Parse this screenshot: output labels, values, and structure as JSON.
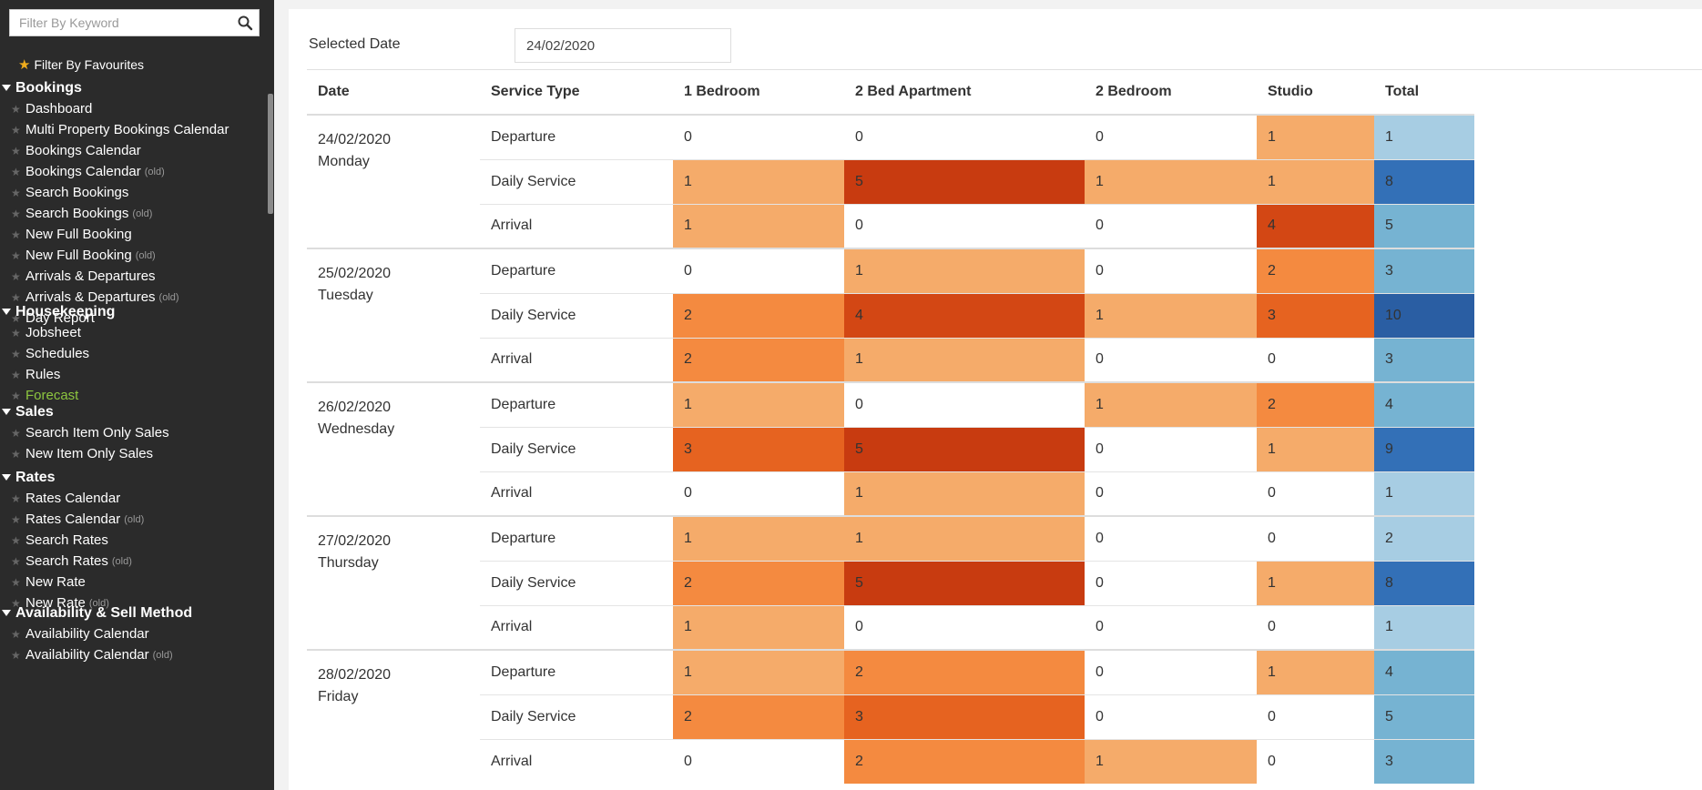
{
  "sidebar": {
    "search_placeholder": "Filter By Keyword",
    "favourites_label": "Filter By Favourites",
    "sections": [
      {
        "title": "Bookings",
        "items": [
          {
            "label": "Dashboard",
            "old": ""
          },
          {
            "label": "Multi Property Bookings Calendar",
            "old": ""
          },
          {
            "label": "Bookings Calendar",
            "old": ""
          },
          {
            "label": "Bookings Calendar",
            "old": "(old)"
          },
          {
            "label": "Search Bookings",
            "old": ""
          },
          {
            "label": "Search Bookings",
            "old": "(old)"
          },
          {
            "label": "New Full Booking",
            "old": ""
          },
          {
            "label": "New Full Booking",
            "old": "(old)"
          },
          {
            "label": "Arrivals & Departures",
            "old": ""
          },
          {
            "label": "Arrivals & Departures",
            "old": "(old)"
          },
          {
            "label": "Day Report",
            "old": ""
          }
        ]
      },
      {
        "title": "Housekeeping",
        "items": [
          {
            "label": "Jobsheet",
            "old": ""
          },
          {
            "label": "Schedules",
            "old": ""
          },
          {
            "label": "Rules",
            "old": ""
          },
          {
            "label": "Forecast",
            "old": "",
            "active": true
          }
        ]
      },
      {
        "title": "Sales",
        "items": [
          {
            "label": "Search Item Only Sales",
            "old": ""
          },
          {
            "label": "New Item Only Sales",
            "old": ""
          }
        ]
      },
      {
        "title": "Rates",
        "items": [
          {
            "label": "Rates Calendar",
            "old": ""
          },
          {
            "label": "Rates Calendar",
            "old": "(old)"
          },
          {
            "label": "Search Rates",
            "old": ""
          },
          {
            "label": "Search Rates",
            "old": "(old)"
          },
          {
            "label": "New Rate",
            "old": ""
          },
          {
            "label": "New Rate",
            "old": "(old)"
          }
        ]
      },
      {
        "title": "Availability & Sell Method",
        "items": [
          {
            "label": "Availability Calendar",
            "old": ""
          },
          {
            "label": "Availability Calendar",
            "old": "(old)"
          }
        ]
      }
    ]
  },
  "main": {
    "selected_date_label": "Selected Date",
    "selected_date_value": "24/02/2020",
    "columns": [
      "Date",
      "Service Type",
      "1 Bedroom",
      "2 Bed Apartment",
      "2 Bedroom",
      "Studio",
      "Total"
    ],
    "days": [
      {
        "date": "24/02/2020",
        "weekday": "Monday",
        "rows": [
          {
            "service": "Departure",
            "values": [
              0,
              0,
              0,
              1
            ],
            "total": 1
          },
          {
            "service": "Daily Service",
            "values": [
              1,
              5,
              1,
              1
            ],
            "total": 8
          },
          {
            "service": "Arrival",
            "values": [
              1,
              0,
              0,
              4
            ],
            "total": 5
          }
        ]
      },
      {
        "date": "25/02/2020",
        "weekday": "Tuesday",
        "rows": [
          {
            "service": "Departure",
            "values": [
              0,
              1,
              0,
              2
            ],
            "total": 3
          },
          {
            "service": "Daily Service",
            "values": [
              2,
              4,
              1,
              3
            ],
            "total": 10
          },
          {
            "service": "Arrival",
            "values": [
              2,
              1,
              0,
              0
            ],
            "total": 3
          }
        ]
      },
      {
        "date": "26/02/2020",
        "weekday": "Wednesday",
        "rows": [
          {
            "service": "Departure",
            "values": [
              1,
              0,
              1,
              2
            ],
            "total": 4
          },
          {
            "service": "Daily Service",
            "values": [
              3,
              5,
              0,
              1
            ],
            "total": 9
          },
          {
            "service": "Arrival",
            "values": [
              0,
              1,
              0,
              0
            ],
            "total": 1
          }
        ]
      },
      {
        "date": "27/02/2020",
        "weekday": "Thursday",
        "rows": [
          {
            "service": "Departure",
            "values": [
              1,
              1,
              0,
              0
            ],
            "total": 2
          },
          {
            "service": "Daily Service",
            "values": [
              2,
              5,
              0,
              1
            ],
            "total": 8
          },
          {
            "service": "Arrival",
            "values": [
              1,
              0,
              0,
              0
            ],
            "total": 1
          }
        ]
      },
      {
        "date": "28/02/2020",
        "weekday": "Friday",
        "rows": [
          {
            "service": "Departure",
            "values": [
              1,
              2,
              0,
              1
            ],
            "total": 4
          },
          {
            "service": "Daily Service",
            "values": [
              2,
              3,
              0,
              0
            ],
            "total": 5
          },
          {
            "service": "Arrival",
            "values": [
              0,
              2,
              1,
              0
            ],
            "total": 3
          }
        ]
      }
    ]
  },
  "colors": {
    "sidebar_bg": "#2b2b2b",
    "active_nav": "#8dc63f",
    "favourite_star": "#f0ad1c",
    "orange_scale": [
      "#ffffff",
      "#f5ab6a",
      "#f48a40",
      "#e66320",
      "#d34714",
      "#c83b10"
    ],
    "blue_scale": [
      "#a7cde3",
      "#76b3d2",
      "#3370b7",
      "#2a5ea3"
    ]
  }
}
